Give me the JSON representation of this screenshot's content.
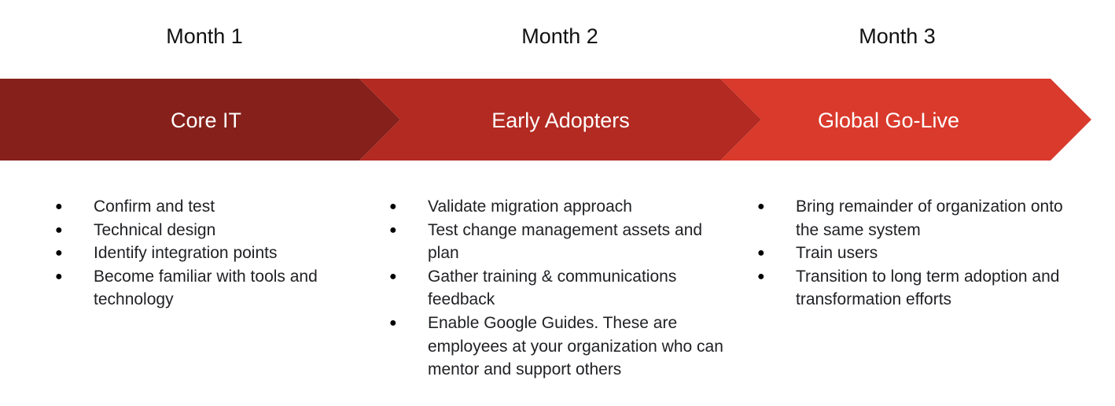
{
  "colors": {
    "phase_1": "#86201a",
    "phase_2": "#b22a22",
    "phase_3": "#d93a2c",
    "text_dark": "#202124",
    "text_light": "#ffffff"
  },
  "bullet_glyph": "●",
  "timeline": {
    "months": [
      "Month 1",
      "Month 2",
      "Month 3"
    ],
    "phases": [
      {
        "title": "Core IT",
        "items": [
          "Confirm and test",
          "Technical design",
          "Identify integration points",
          "Become familiar with tools and technology"
        ]
      },
      {
        "title": "Early Adopters",
        "items": [
          "Validate migration approach",
          "Test change management assets and plan",
          "Gather training & communications feedback",
          "Enable Google Guides. These are employees at your organization who can mentor and support others"
        ]
      },
      {
        "title": "Global Go-Live",
        "items": [
          "Bring remainder of organization onto the same system",
          "Train users",
          "Transition to long term adoption and transformation efforts"
        ]
      }
    ]
  }
}
